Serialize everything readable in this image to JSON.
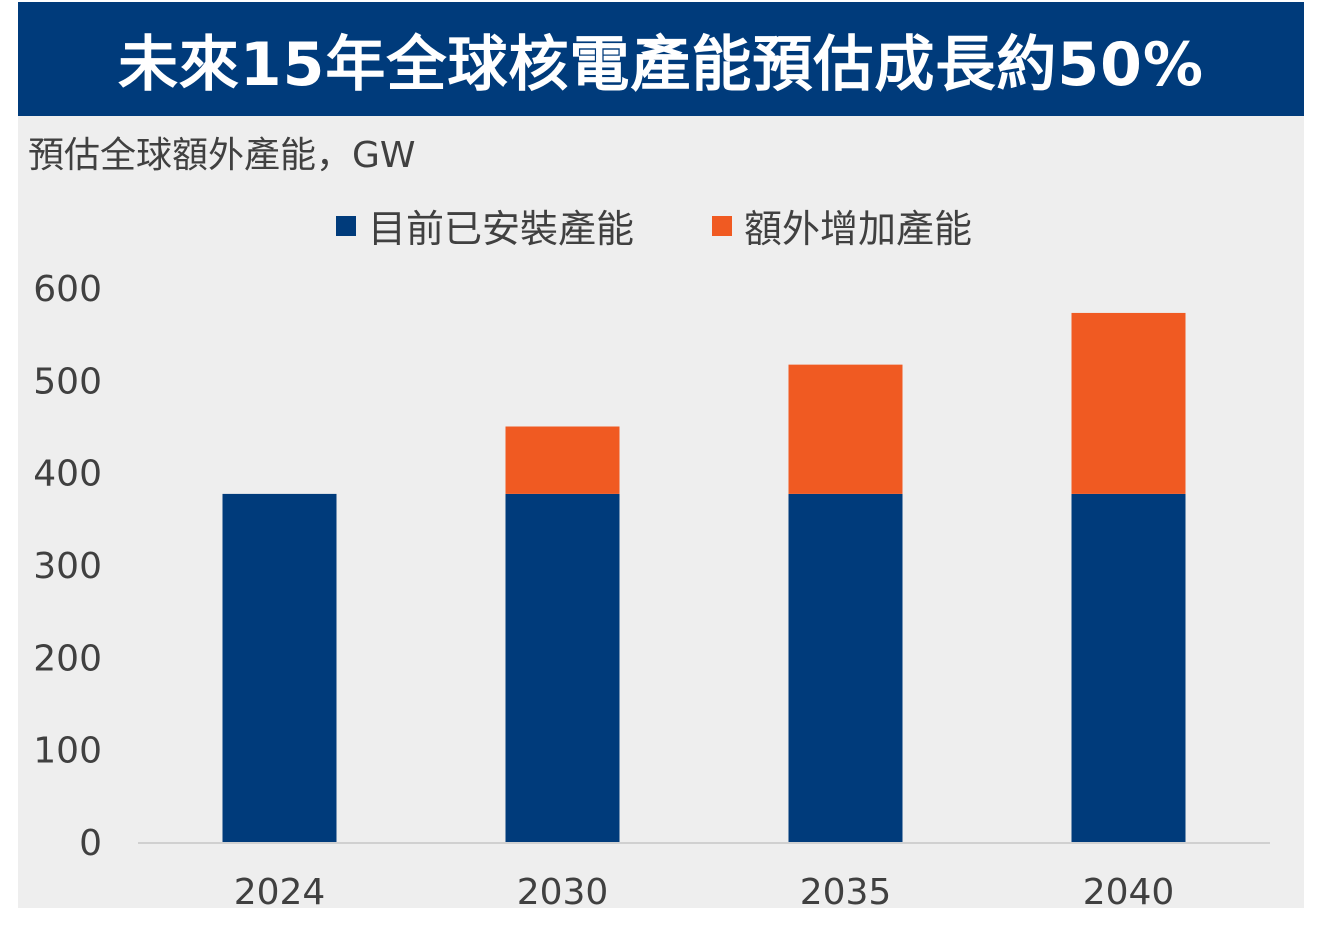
{
  "title": "未來15年全球核電產能預估成長約50%",
  "colors": {
    "installed": "#003b7b",
    "additional": "#f05a22",
    "title_bg": "#003b7b",
    "panel_bg": "#eeeeee"
  },
  "chart_data": {
    "type": "bar",
    "stacked": true,
    "title": "",
    "ylabel": "預估全球額外產能，GW",
    "categories": [
      "2024",
      "2030",
      "2035",
      "2040"
    ],
    "series": [
      {
        "name": "目前已安裝產能",
        "values": [
          377,
          377,
          377,
          377
        ]
      },
      {
        "name": "額外增加產能",
        "values": [
          0,
          73,
          140,
          196
        ]
      }
    ],
    "ylim": [
      0,
      600
    ],
    "yticks": [
      "0",
      "100",
      "200",
      "300",
      "400",
      "500",
      "600"
    ],
    "grid": false,
    "legend_position": "top"
  }
}
